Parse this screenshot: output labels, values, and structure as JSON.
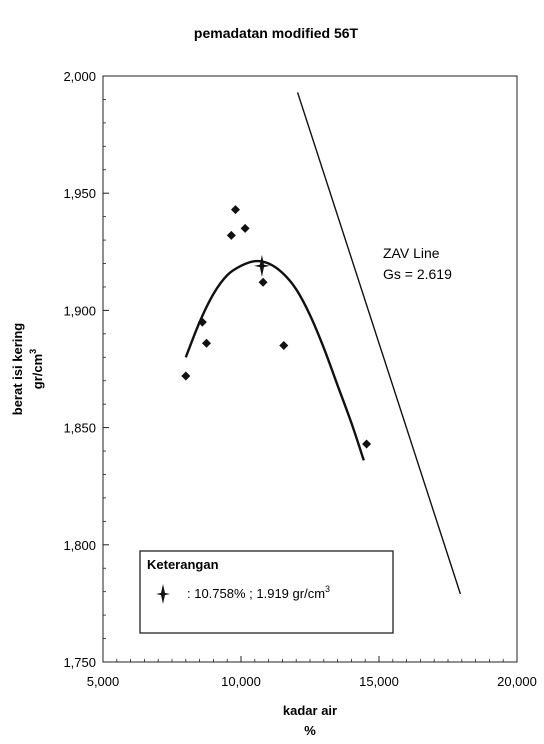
{
  "chart_data": {
    "type": "scatter",
    "title": "pemadatan modified 56T",
    "xlabel": "kadar air",
    "xlabel_unit": "%",
    "ylabel_main": "berat isi kering",
    "ylabel_unit_base": "gr/cm",
    "ylabel_unit_sup": "3",
    "xlim": [
      5000,
      20000
    ],
    "ylim": [
      1750,
      2000
    ],
    "x_ticks": [
      5000,
      10000,
      15000,
      20000
    ],
    "x_tick_labels": [
      "5,000",
      "10,000",
      "15,000",
      "20,000"
    ],
    "y_ticks": [
      1750,
      1800,
      1850,
      1900,
      1950,
      2000
    ],
    "y_tick_labels": [
      "1,750",
      "1,800",
      "1,850",
      "1,900",
      "1,950",
      "2,000"
    ],
    "grid": false,
    "series": [
      {
        "kind": "points",
        "marker": "diamond",
        "points": [
          {
            "x": 8000,
            "y": 1872
          },
          {
            "x": 8600,
            "y": 1895
          },
          {
            "x": 8750,
            "y": 1886
          },
          {
            "x": 9650,
            "y": 1932
          },
          {
            "x": 9800,
            "y": 1943
          },
          {
            "x": 10150,
            "y": 1935
          },
          {
            "x": 10800,
            "y": 1912
          },
          {
            "x": 11550,
            "y": 1885
          },
          {
            "x": 14550,
            "y": 1843
          }
        ]
      },
      {
        "kind": "curve",
        "style": "fitted",
        "points": [
          {
            "x": 8000,
            "y": 1880
          },
          {
            "x": 8500,
            "y": 1895
          },
          {
            "x": 9000,
            "y": 1907
          },
          {
            "x": 9500,
            "y": 1915
          },
          {
            "x": 10000,
            "y": 1919
          },
          {
            "x": 10500,
            "y": 1921
          },
          {
            "x": 11000,
            "y": 1920
          },
          {
            "x": 11500,
            "y": 1916
          },
          {
            "x": 12000,
            "y": 1909
          },
          {
            "x": 12500,
            "y": 1898
          },
          {
            "x": 13000,
            "y": 1884
          },
          {
            "x": 13500,
            "y": 1868
          },
          {
            "x": 14000,
            "y": 1852
          },
          {
            "x": 14450,
            "y": 1836
          }
        ]
      },
      {
        "kind": "line",
        "style": "zav",
        "points": [
          {
            "x": 12050,
            "y": 1993
          },
          {
            "x": 17950,
            "y": 1779
          }
        ]
      }
    ],
    "optimum": {
      "x": 10758,
      "y": 1919
    },
    "annotation": {
      "line1": "ZAV Line",
      "line2": "Gs = 2.619"
    },
    "legend": {
      "placement": "bottom-left",
      "title": "Keterangan",
      "entry_text": ": 10.758% ; 1.919 gr/cm",
      "entry_sup": "3"
    }
  }
}
